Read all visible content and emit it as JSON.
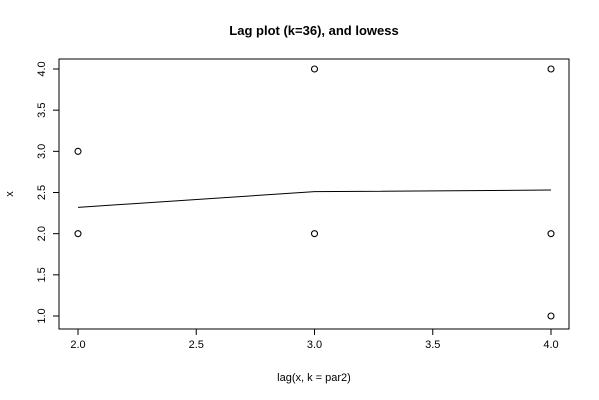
{
  "chart_data": {
    "type": "scatter",
    "title": "Lag plot (k=36), and lowess",
    "xlabel": "lag(x, k = par2)",
    "ylabel": "x",
    "xlim": [
      2.0,
      4.0
    ],
    "ylim": [
      1.0,
      4.0
    ],
    "xticks": [
      "2.0",
      "2.5",
      "3.0",
      "3.5",
      "4.0"
    ],
    "yticks": [
      "1.0",
      "1.5",
      "2.0",
      "2.5",
      "3.0",
      "3.5",
      "4.0"
    ],
    "points": [
      {
        "x": 2.0,
        "y": 3.0
      },
      {
        "x": 2.0,
        "y": 2.0
      },
      {
        "x": 3.0,
        "y": 4.0
      },
      {
        "x": 3.0,
        "y": 2.0
      },
      {
        "x": 4.0,
        "y": 4.0
      },
      {
        "x": 4.0,
        "y": 2.0
      },
      {
        "x": 4.0,
        "y": 1.0
      }
    ],
    "lowess": [
      {
        "x": 2.0,
        "y": 2.32
      },
      {
        "x": 3.0,
        "y": 2.51
      },
      {
        "x": 4.0,
        "y": 2.53
      }
    ],
    "grid": false,
    "legend": "none"
  }
}
